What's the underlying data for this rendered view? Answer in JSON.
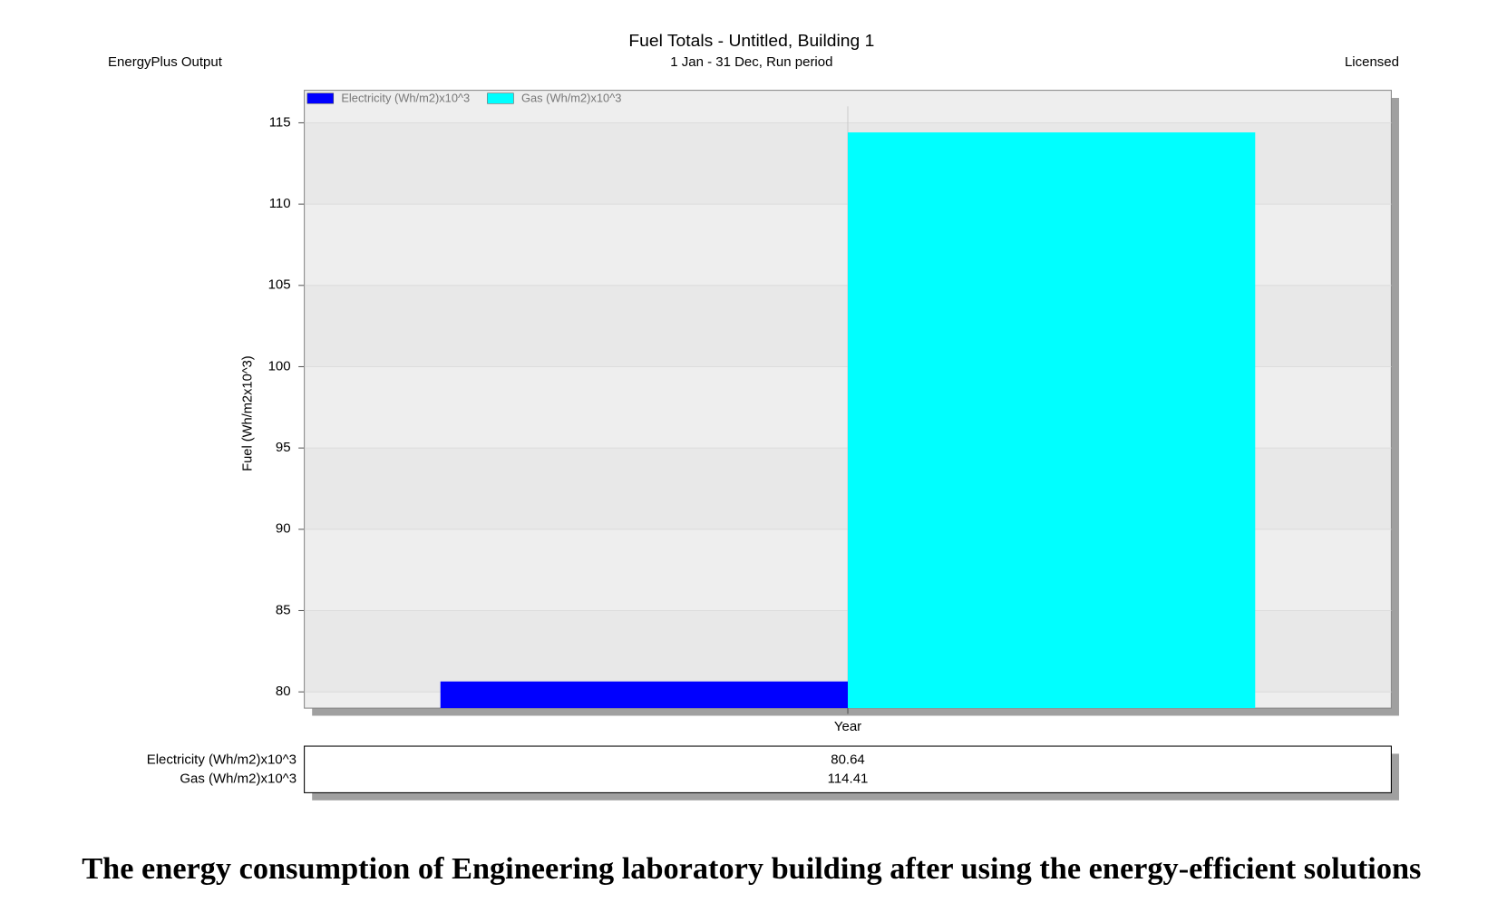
{
  "chart_data": {
    "type": "bar",
    "title": "Fuel Totals - Untitled, Building 1",
    "subtitle": "1 Jan - 31 Dec, Run period",
    "header_left": "EnergyPlus Output",
    "header_right": "Licensed",
    "ylabel": "Fuel (Wh/m2x10^3)",
    "categories": [
      "Year"
    ],
    "series": [
      {
        "name": "Electricity (Wh/m2)x10^3",
        "color": "#0000ff",
        "values": [
          80.64
        ]
      },
      {
        "name": "Gas (Wh/m2)x10^3",
        "color": "#00ffff",
        "values": [
          114.41
        ]
      }
    ],
    "ylim": [
      79,
      117
    ],
    "yticks": [
      80,
      85,
      90,
      95,
      100,
      105,
      110,
      115
    ],
    "grid": true,
    "legend": "upper left",
    "caption": "The energy consumption of Engineering laboratory building after using the energy-efficient solutions"
  }
}
